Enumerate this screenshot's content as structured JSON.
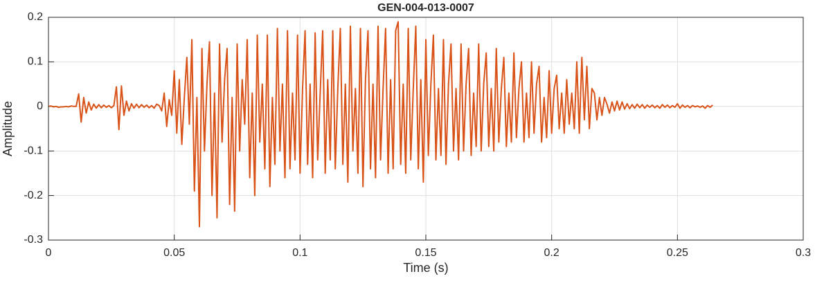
{
  "chart_data": {
    "type": "line",
    "title": "GEN-004-013-0007",
    "xlabel": "Time (s)",
    "ylabel": "Amplitude",
    "xlim": [
      0,
      0.3
    ],
    "ylim": [
      -0.3,
      0.2
    ],
    "xticks": [
      0,
      0.05,
      0.1,
      0.15,
      0.2,
      0.25,
      0.3
    ],
    "yticks": [
      -0.3,
      -0.2,
      -0.1,
      0,
      0.1,
      0.2
    ],
    "grid": true,
    "x": [
      0,
      0.001,
      0.002,
      0.003,
      0.004,
      0.005,
      0.006,
      0.007,
      0.008,
      0.009,
      0.01,
      0.011,
      0.012,
      0.013,
      0.014,
      0.015,
      0.016,
      0.017,
      0.018,
      0.019,
      0.02,
      0.021,
      0.022,
      0.023,
      0.024,
      0.025,
      0.026,
      0.027,
      0.028,
      0.029,
      0.03,
      0.031,
      0.032,
      0.033,
      0.034,
      0.035,
      0.036,
      0.037,
      0.038,
      0.039,
      0.04,
      0.041,
      0.042,
      0.043,
      0.044,
      0.045,
      0.046,
      0.047,
      0.048,
      0.049,
      0.05,
      0.051,
      0.052,
      0.053,
      0.054,
      0.055,
      0.056,
      0.057,
      0.058,
      0.059,
      0.06,
      0.061,
      0.062,
      0.063,
      0.064,
      0.065,
      0.066,
      0.067,
      0.068,
      0.069,
      0.07,
      0.071,
      0.072,
      0.073,
      0.074,
      0.075,
      0.076,
      0.077,
      0.078,
      0.079,
      0.08,
      0.081,
      0.082,
      0.083,
      0.084,
      0.085,
      0.086,
      0.087,
      0.088,
      0.089,
      0.09,
      0.091,
      0.092,
      0.093,
      0.094,
      0.095,
      0.096,
      0.097,
      0.098,
      0.099,
      0.1,
      0.101,
      0.102,
      0.103,
      0.104,
      0.105,
      0.106,
      0.107,
      0.108,
      0.109,
      0.11,
      0.111,
      0.112,
      0.113,
      0.114,
      0.115,
      0.116,
      0.117,
      0.118,
      0.119,
      0.12,
      0.121,
      0.122,
      0.123,
      0.124,
      0.125,
      0.126,
      0.127,
      0.128,
      0.129,
      0.13,
      0.131,
      0.132,
      0.133,
      0.134,
      0.135,
      0.136,
      0.137,
      0.138,
      0.139,
      0.14,
      0.141,
      0.142,
      0.143,
      0.144,
      0.145,
      0.146,
      0.147,
      0.148,
      0.149,
      0.15,
      0.151,
      0.152,
      0.153,
      0.154,
      0.155,
      0.156,
      0.157,
      0.158,
      0.159,
      0.16,
      0.161,
      0.162,
      0.163,
      0.164,
      0.165,
      0.166,
      0.167,
      0.168,
      0.169,
      0.17,
      0.171,
      0.172,
      0.173,
      0.174,
      0.175,
      0.176,
      0.177,
      0.178,
      0.179,
      0.18,
      0.181,
      0.182,
      0.183,
      0.184,
      0.185,
      0.186,
      0.187,
      0.188,
      0.189,
      0.19,
      0.191,
      0.192,
      0.193,
      0.194,
      0.195,
      0.196,
      0.197,
      0.198,
      0.199,
      0.2,
      0.201,
      0.202,
      0.203,
      0.204,
      0.205,
      0.206,
      0.207,
      0.208,
      0.209,
      0.21,
      0.211,
      0.212,
      0.213,
      0.214,
      0.215,
      0.216,
      0.217,
      0.218,
      0.219,
      0.22,
      0.221,
      0.222,
      0.223,
      0.224,
      0.225,
      0.226,
      0.227,
      0.228,
      0.229,
      0.23,
      0.231,
      0.232,
      0.233,
      0.234,
      0.235,
      0.236,
      0.237,
      0.238,
      0.239,
      0.24,
      0.241,
      0.242,
      0.243,
      0.244,
      0.245,
      0.246,
      0.247,
      0.248,
      0.249,
      0.25,
      0.251,
      0.252,
      0.253,
      0.254,
      0.255,
      0.256,
      0.257,
      0.258,
      0.259,
      0.26,
      0.261,
      0.262,
      0.263,
      0.264
    ],
    "series": [
      {
        "name": "Amplitude",
        "color": "#D95319",
        "values": [
          0,
          0.001,
          -0.001,
          0,
          -0.002,
          -0.001,
          -0.001,
          0,
          -0.001,
          0.001,
          0,
          0,
          0.028,
          -0.035,
          0.02,
          -0.015,
          0.01,
          -0.008,
          0.005,
          -0.004,
          0.004,
          -0.003,
          0.003,
          -0.002,
          0.002,
          -0.003,
          0.002,
          0.044,
          -0.052,
          0.046,
          -0.02,
          0.012,
          -0.01,
          0.006,
          -0.004,
          0.005,
          -0.003,
          0.004,
          -0.002,
          0.003,
          -0.003,
          0.002,
          -0.004,
          0.005,
          0.002,
          -0.01,
          0.03,
          -0.045,
          0.015,
          -0.02,
          0.08,
          -0.06,
          0.06,
          -0.085,
          0.02,
          0.11,
          -0.04,
          0.15,
          -0.19,
          0.02,
          -0.27,
          0.13,
          -0.1,
          0.05,
          0.145,
          -0.2,
          0.03,
          -0.25,
          0.14,
          -0.08,
          0.06,
          0.13,
          -0.22,
          0.02,
          -0.235,
          0.14,
          -0.1,
          0.06,
          -0.04,
          0.15,
          -0.16,
          0.03,
          -0.2,
          0.16,
          -0.08,
          0.05,
          -0.14,
          0.16,
          -0.18,
          0.02,
          -0.13,
          0.175,
          -0.1,
          0.05,
          -0.16,
          0.17,
          -0.14,
          0.03,
          -0.12,
          0.16,
          -0.15,
          0.04,
          0.17,
          -0.13,
          0.05,
          -0.16,
          0.165,
          -0.12,
          0.03,
          0.17,
          -0.15,
          0.06,
          -0.12,
          0.17,
          -0.14,
          0.04,
          0.175,
          -0.13,
          0.05,
          -0.17,
          0.18,
          -0.1,
          0.04,
          -0.15,
          0.175,
          -0.18,
          0.06,
          0.17,
          -0.14,
          0.05,
          -0.16,
          0.18,
          -0.12,
          0.04,
          0.175,
          -0.15,
          0.06,
          -0.14,
          0.17,
          0.19,
          -0.13,
          0.05,
          -0.15,
          0.175,
          -0.12,
          0.04,
          0.18,
          -0.14,
          0.06,
          -0.17,
          0.15,
          -0.11,
          0.05,
          0.16,
          -0.12,
          0.04,
          -0.11,
          0.15,
          -0.13,
          0.05,
          0.14,
          -0.1,
          0.04,
          -0.12,
          0.14,
          -0.1,
          0.05,
          0.13,
          -0.11,
          0.03,
          -0.09,
          0.14,
          -0.1,
          0.05,
          0.12,
          -0.09,
          0.04,
          -0.1,
          0.13,
          -0.08,
          0.04,
          0.11,
          -0.09,
          0.03,
          -0.08,
          0.12,
          -0.07,
          0.04,
          0.1,
          -0.08,
          0.03,
          -0.07,
          0.1,
          -0.06,
          0.05,
          0.09,
          -0.08,
          0.02,
          -0.07,
          0.08,
          -0.06,
          0.04,
          0.07,
          -0.05,
          0.03,
          -0.06,
          0.06,
          -0.04,
          0.03,
          -0.05,
          0.1,
          -0.06,
          0.11,
          -0.03,
          0.09,
          -0.05,
          0.04,
          0.03,
          -0.03,
          0.02,
          -0.02,
          0.02,
          0.005,
          -0.015,
          0.01,
          -0.01,
          0.012,
          -0.008,
          0.01,
          -0.006,
          0.006,
          -0.005,
          0.004,
          -0.004,
          0.005,
          -0.003,
          0.004,
          -0.004,
          0.003,
          -0.002,
          0.003,
          -0.003,
          0.002,
          -0.004,
          0.004,
          -0.002,
          0.003,
          -0.003,
          0.002,
          -0.002,
          0.006,
          -0.004,
          0.003,
          -0.002,
          0.002,
          -0.003,
          0.002,
          -0.001,
          0.001,
          -0.002,
          0.001,
          -0.004,
          0.002,
          -0.002,
          0.003
        ]
      }
    ]
  }
}
